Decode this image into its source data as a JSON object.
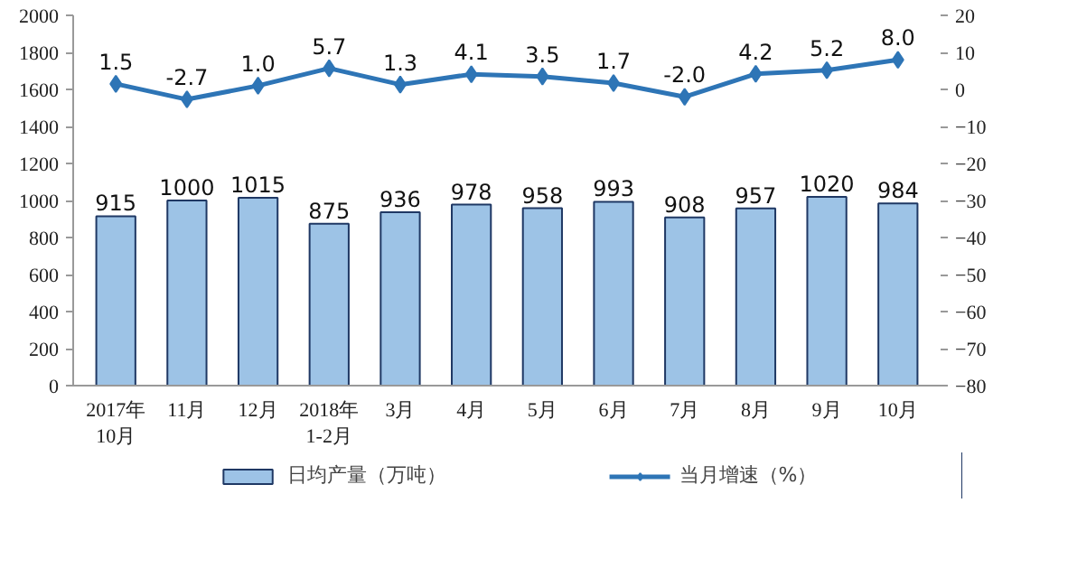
{
  "chart_data": {
    "type": "bar",
    "categories": [
      "2017年\n10月",
      "11月",
      "12月",
      "2018年\n1-2月",
      "3月",
      "4月",
      "5月",
      "6月",
      "7月",
      "8月",
      "9月",
      "10月"
    ],
    "series": [
      {
        "name": "日均产量（万吨）",
        "color": "#9dc3e6",
        "values": [
          915,
          1000,
          1015,
          875,
          936,
          978,
          958,
          993,
          908,
          957,
          1020,
          984
        ]
      },
      {
        "name": "当月增速（%）",
        "type": "line",
        "axis": "y2",
        "color": "#2e75b6",
        "marker": "diamond",
        "values": [
          1.5,
          -2.7,
          1.0,
          5.7,
          1.3,
          4.1,
          3.5,
          1.7,
          -2.0,
          4.2,
          5.2,
          8.0
        ],
        "value_labels": [
          "1.5",
          "-2.7",
          "1.0",
          "5.7",
          "1.3",
          "4.1",
          "3.5",
          "1.7",
          "-2.0",
          "4.2",
          "5.2",
          "8.0"
        ]
      }
    ],
    "ylim": [
      0,
      2000
    ],
    "yticks": [
      0,
      200,
      400,
      600,
      800,
      1000,
      1200,
      1400,
      1600,
      1800,
      2000
    ],
    "y2lim": [
      -80,
      20
    ],
    "y2ticks": [
      -80,
      -70,
      -60,
      -50,
      -40,
      -30,
      -20,
      -10,
      0,
      10,
      20
    ],
    "data_labels": true,
    "legend": "bottom",
    "grid": false
  }
}
